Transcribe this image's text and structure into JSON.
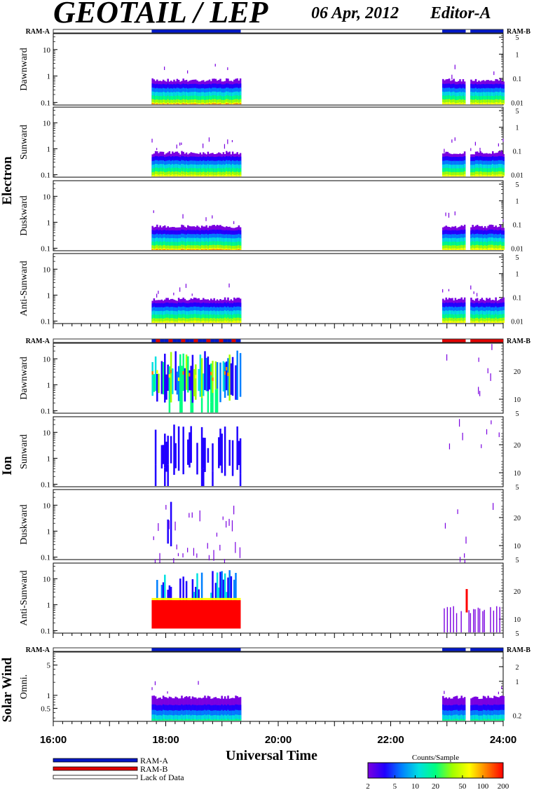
{
  "header": {
    "title": "GEOTAIL / LEP",
    "date": "06 Apr, 2012",
    "editor": "Editor-A"
  },
  "chart_data": {
    "type": "heatmap",
    "xlabel": "Universal Time",
    "x_range": [
      "16:00",
      "24:00"
    ],
    "x_ticks": [
      "16:00",
      "18:00",
      "20:00",
      "22:00",
      "24:00"
    ],
    "groups": [
      {
        "name": "Electron",
        "ram_left": "RAM-A",
        "ram_right": "RAM-B",
        "ram_bar": [
          {
            "from": "17:45",
            "to": "19:20",
            "mode": "RAM-A"
          },
          {
            "from": "22:55",
            "to": "23:20",
            "mode": "RAM-A"
          },
          {
            "from": "23:25",
            "to": "24:00",
            "mode": "RAM-A"
          }
        ],
        "panels": [
          {
            "label": "Dawnward",
            "left_ticks": [
              "0.1",
              "1",
              "10"
            ],
            "right_ticks": [
              "0.01",
              "0.1",
              "1",
              "5"
            ]
          },
          {
            "label": "Sunward",
            "left_ticks": [
              "0.1",
              "1",
              "10"
            ],
            "right_ticks": [
              "0.01",
              "0.1",
              "1",
              "5"
            ]
          },
          {
            "label": "Duskward",
            "left_ticks": [
              "0.1",
              "1",
              "10"
            ],
            "right_ticks": [
              "0.01",
              "0.1",
              "1",
              "5"
            ]
          },
          {
            "label": "Anti-Sunward",
            "left_ticks": [
              "0.1",
              "1",
              "10"
            ],
            "right_ticks": [
              "0.01",
              "0.1",
              "1",
              "5"
            ]
          }
        ],
        "data_intervals": [
          {
            "from": "17:45",
            "to": "19:20"
          },
          {
            "from": "22:55",
            "to": "23:20"
          },
          {
            "from": "23:25",
            "to": "24:00"
          }
        ]
      },
      {
        "name": "Ion",
        "ram_left": "RAM-A",
        "ram_right": "RAM-B",
        "ram_bar": [
          {
            "from": "17:45",
            "to": "19:20",
            "mode": "RAM-A/RAM-B"
          },
          {
            "from": "22:55",
            "to": "23:20",
            "mode": "RAM-B"
          },
          {
            "from": "23:25",
            "to": "24:00",
            "mode": "RAM-B"
          }
        ],
        "panels": [
          {
            "label": "Dawnward",
            "left_ticks": [
              "0.1",
              "1",
              "10"
            ],
            "right_ticks": [
              "5",
              "10",
              "20"
            ]
          },
          {
            "label": "Sunward",
            "left_ticks": [
              "0.1",
              "1",
              "10"
            ],
            "right_ticks": [
              "5",
              "10",
              "20"
            ]
          },
          {
            "label": "Duskward",
            "left_ticks": [
              "0.1",
              "1",
              "10"
            ],
            "right_ticks": [
              "5",
              "10",
              "20"
            ]
          },
          {
            "label": "Anti-Sunward",
            "left_ticks": [
              "0.1",
              "1",
              "10"
            ],
            "right_ticks": [
              "5",
              "10",
              "20"
            ]
          }
        ],
        "data_intervals": [
          {
            "from": "17:45",
            "to": "19:20"
          },
          {
            "from": "22:55",
            "to": "24:00"
          }
        ]
      },
      {
        "name": "Solar Wind",
        "ram_left": "RAM-A",
        "ram_right": "RAM-B",
        "ram_bar": [
          {
            "from": "17:45",
            "to": "19:20",
            "mode": "RAM-A"
          },
          {
            "from": "22:55",
            "to": "23:20",
            "mode": "RAM-A"
          },
          {
            "from": "23:25",
            "to": "24:00",
            "mode": "RAM-A"
          }
        ],
        "panels": [
          {
            "label": "Omni.",
            "left_ticks": [
              "0.5",
              "1",
              "5"
            ],
            "right_ticks": [
              "0.2",
              "1",
              "2"
            ]
          }
        ],
        "data_intervals": [
          {
            "from": "17:45",
            "to": "19:20"
          },
          {
            "from": "22:55",
            "to": "23:20"
          },
          {
            "from": "23:25",
            "to": "24:00"
          }
        ]
      }
    ],
    "legend": {
      "entries": [
        {
          "label": "RAM-A",
          "color": "#0018c8"
        },
        {
          "label": "RAM-B",
          "color": "#e00000"
        },
        {
          "label": "Lack of Data",
          "color": "#ffffff"
        }
      ],
      "placement": "bottom-left"
    },
    "colorbar": {
      "title": "Counts/Sample",
      "ticks": [
        "2",
        "5",
        "10",
        "20",
        "50",
        "100",
        "200"
      ],
      "colors": [
        "#7a00e0",
        "#2000ff",
        "#0080ff",
        "#00e0e0",
        "#00ff80",
        "#a0ff00",
        "#ffff00",
        "#ff8000",
        "#ff0000"
      ],
      "placement": "bottom-right"
    }
  }
}
